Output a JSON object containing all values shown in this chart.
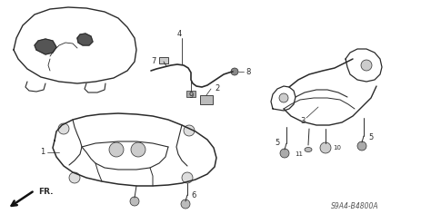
{
  "bg_color": "#ffffff",
  "line_color": "#2a2a2a",
  "part_code": "S9A4-B4800A",
  "fr_label": "FR.",
  "font_size_parts": 6,
  "font_size_code": 5.5
}
